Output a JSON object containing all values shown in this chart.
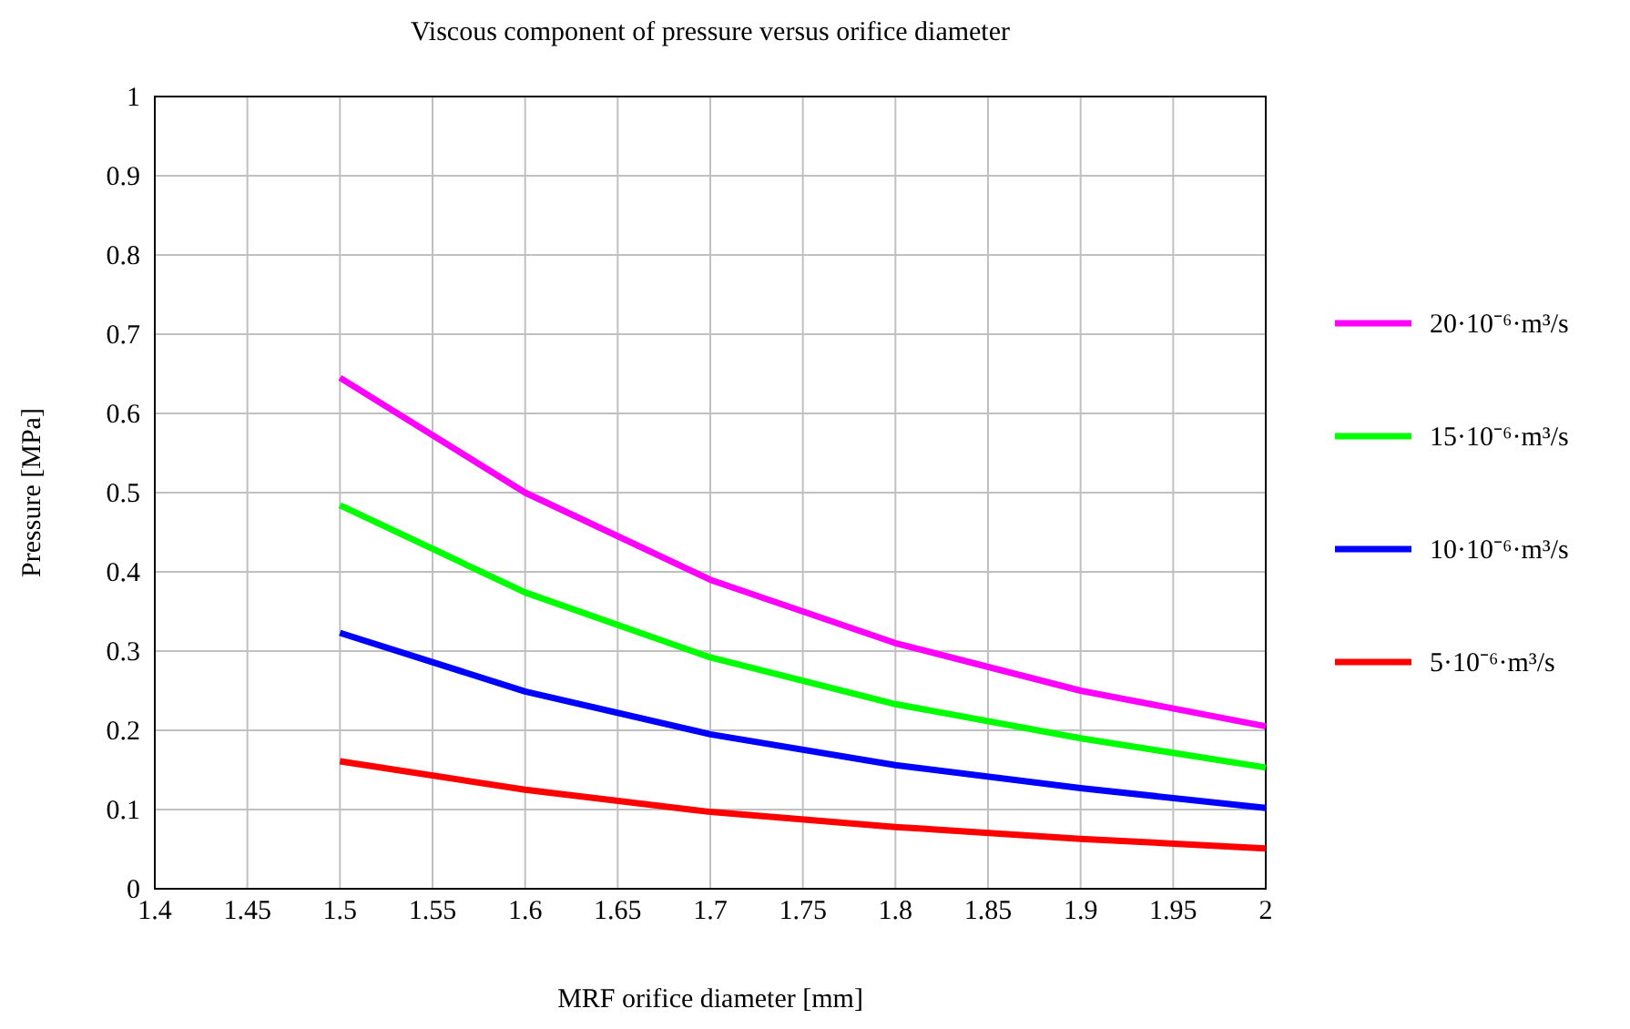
{
  "chart_data": {
    "type": "line",
    "title": "Viscous component of pressure versus orifice diameter",
    "xlabel": "MRF orifice diameter [mm]",
    "ylabel": "Pressure [MPa]",
    "x": [
      1.5,
      1.6,
      1.7,
      1.8,
      1.9,
      2.0
    ],
    "series": [
      {
        "name": "20·10⁻⁶·m³/s",
        "color": "#ff00ff",
        "values": [
          0.645,
          0.5,
          0.39,
          0.31,
          0.25,
          0.205
        ]
      },
      {
        "name": "15·10⁻⁶·m³/s",
        "color": "#00ff00",
        "values": [
          0.484,
          0.374,
          0.292,
          0.233,
          0.19,
          0.153
        ]
      },
      {
        "name": "10·10⁻⁶·m³/s",
        "color": "#0000ff",
        "values": [
          0.323,
          0.249,
          0.195,
          0.156,
          0.127,
          0.102
        ]
      },
      {
        "name": "5·10⁻⁶·m³/s",
        "color": "#ff0000",
        "values": [
          0.161,
          0.125,
          0.097,
          0.078,
          0.063,
          0.051
        ]
      }
    ],
    "xlim": [
      1.4,
      2
    ],
    "xticks": [
      1.4,
      1.45,
      1.5,
      1.55,
      1.6,
      1.65,
      1.7,
      1.75,
      1.8,
      1.85,
      1.9,
      1.95,
      2
    ],
    "ylim": [
      0,
      1
    ],
    "yticks": [
      0,
      0.1,
      0.2,
      0.3,
      0.4,
      0.5,
      0.6,
      0.7,
      0.8,
      0.9,
      1
    ],
    "grid": true,
    "legend": "right",
    "line_style": "solid",
    "marker": "none"
  }
}
